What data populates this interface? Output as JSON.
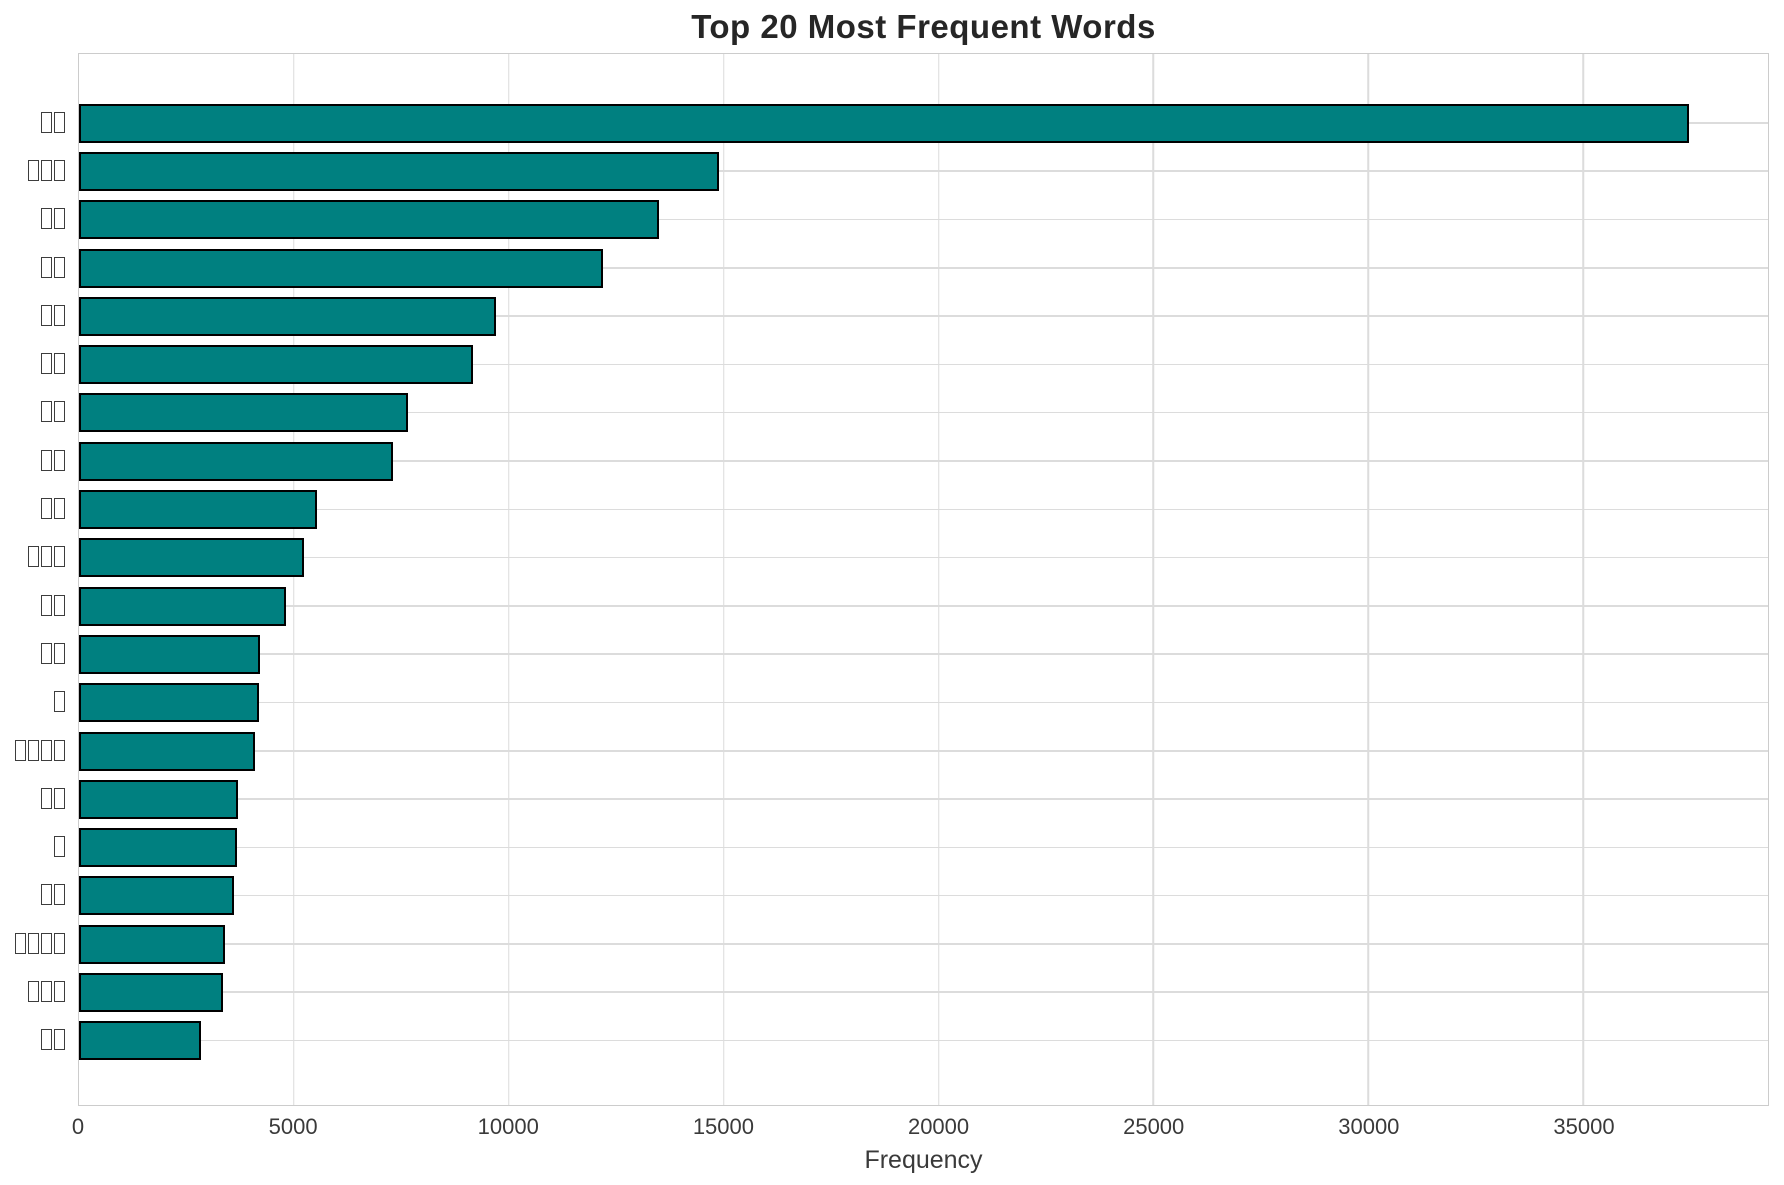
{
  "title": "Top 20 Most Frequent Words",
  "chart_data": {
    "type": "bar",
    "orientation": "horizontal",
    "title": "Top 20 Most Frequent Words",
    "xlabel": "Frequency",
    "ylabel": "",
    "xlim": [
      0,
      39300
    ],
    "x_ticks": [
      0,
      5000,
      10000,
      15000,
      20000,
      25000,
      30000,
      35000
    ],
    "grid": true,
    "legend": "none",
    "categories": [
      "□□",
      "□□□",
      "□□",
      "□□",
      "□□",
      "□□",
      "□□",
      "□□",
      "□□",
      "□□□",
      "□□",
      "□□",
      "□",
      "□□□□",
      "□□",
      "□",
      "□□",
      "□□□□",
      "□□□",
      "□□"
    ],
    "categories_note": "CJK words rendered as missing-glyph tofu boxes in the source image",
    "values": [
      37460,
      14900,
      13500,
      12190,
      9700,
      9160,
      7650,
      7300,
      5530,
      5230,
      4810,
      4210,
      4190,
      4090,
      3700,
      3670,
      3600,
      3400,
      3350,
      2840
    ],
    "bar_color": "#008080",
    "bar_edge_color": "#000000",
    "grid_color": "#dcdcdc",
    "spine_color": "#cccccc",
    "title_color": "#262626",
    "tick_label_color": "#3a3a3a"
  }
}
